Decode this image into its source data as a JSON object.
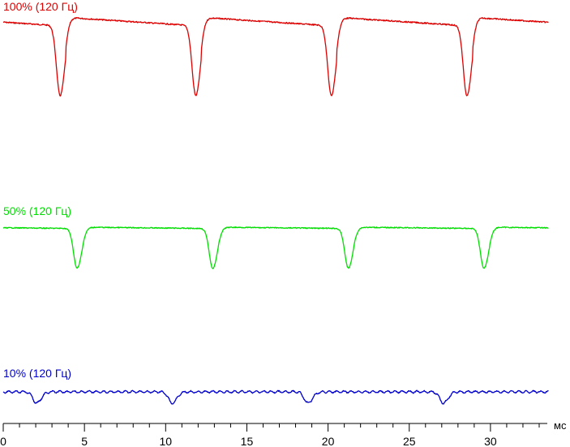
{
  "chart_data": {
    "type": "line",
    "title": "",
    "xlabel": "",
    "x_unit": "мс",
    "ylabel": "",
    "xlim": [
      0,
      33.5
    ],
    "x_ticks": [
      0,
      5,
      10,
      15,
      20,
      25,
      30
    ],
    "x_minor_step": 1,
    "grid": false,
    "series": [
      {
        "name": "100% (120 Гц)",
        "color": "#dd0000",
        "level": 1.0,
        "dip_depth": 1.0,
        "dip_times_ms": [
          3.5,
          11.85,
          20.2,
          28.55
        ],
        "period_ms": 8.35
      },
      {
        "name": "50% (120 Гц)",
        "color": "#00dd00",
        "level": 0.5,
        "dip_depth": 0.5,
        "dip_times_ms": [
          4.55,
          12.9,
          21.25,
          29.6
        ],
        "period_ms": 8.35
      },
      {
        "name": "10% (120 Гц)",
        "color": "#0000cc",
        "level": 0.1,
        "dip_depth": 0.16,
        "dip_times_ms": [
          2.05,
          10.4,
          18.75,
          27.1
        ],
        "period_ms": 8.35
      }
    ]
  }
}
